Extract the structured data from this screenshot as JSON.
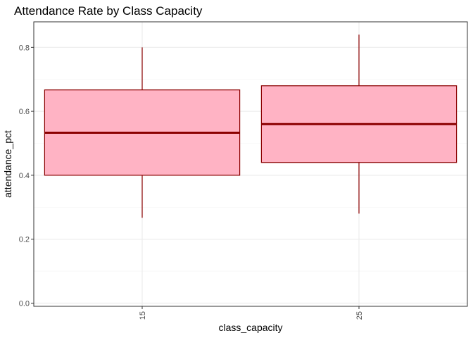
{
  "chart_data": {
    "type": "boxplot",
    "title": "Attendance Rate by Class Capacity",
    "xlabel": "class_capacity",
    "ylabel": "attendance_pct",
    "categories": [
      "15",
      "25"
    ],
    "boxes": [
      {
        "category": "15",
        "min": 0.267,
        "q1": 0.4,
        "median": 0.533,
        "q3": 0.667,
        "max": 0.8
      },
      {
        "category": "25",
        "min": 0.28,
        "q1": 0.44,
        "median": 0.56,
        "q3": 0.68,
        "max": 0.84
      }
    ],
    "yticks": [
      0.0,
      0.2,
      0.4,
      0.6,
      0.8
    ],
    "ylim": [
      -0.01,
      0.88
    ],
    "grid": true,
    "theme": "bw",
    "colors": {
      "fill": "#ffb3c4",
      "outline": "#8b0000",
      "grid_major": "#ebebeb",
      "grid_minor": "#f5f5f5",
      "panel_border": "#333333"
    }
  }
}
